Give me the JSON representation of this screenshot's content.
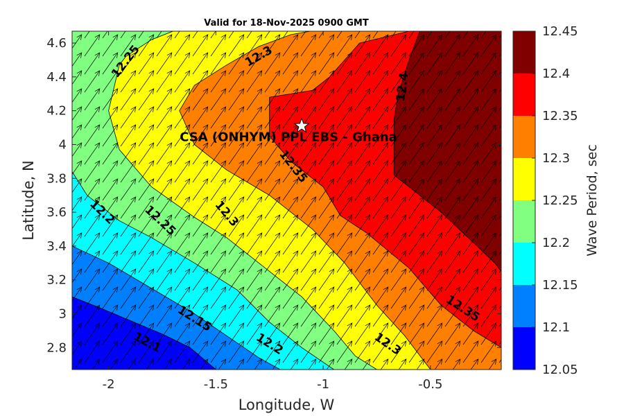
{
  "chart_data": {
    "type": "contour",
    "title": "Valid for 18-Nov-2025 0900 GMT",
    "xlabel": "Longitude, W",
    "ylabel": "Latitude, N",
    "xlim": [
      -2.17,
      -0.17
    ],
    "ylim": [
      2.67,
      4.67
    ],
    "xticks": [
      "-2",
      "-1.5",
      "-1",
      "-0.5"
    ],
    "yticks": [
      "4.6",
      "4.4",
      "4.2",
      "4",
      "3.8",
      "3.6",
      "3.4",
      "3.2",
      "3",
      "2.8"
    ],
    "site": {
      "label": "CSA (ONHYM) PPL EBS  - Ghana",
      "lon": -1.1,
      "lat": 4.11
    },
    "arrow_direction_deg_from_north": 35,
    "colorbar": {
      "label": "Wave Period, sec",
      "ticks": [
        "12.45",
        "12.4",
        "12.35",
        "12.3",
        "12.25",
        "12.2",
        "12.15",
        "12.1",
        "12.05"
      ],
      "levels": [
        12.05,
        12.1,
        12.15,
        12.2,
        12.25,
        12.3,
        12.35,
        12.4,
        12.45
      ],
      "colors": [
        "#0000ff",
        "#0080ff",
        "#00ffff",
        "#80ff80",
        "#ffff00",
        "#ff8000",
        "#ff0000",
        "#800000"
      ]
    },
    "contours": [
      {
        "level": 12.1,
        "path": [
          [
            -2.17,
            3.1
          ],
          [
            -2.05,
            3.04
          ],
          [
            -1.9,
            2.96
          ],
          [
            -1.75,
            2.88
          ],
          [
            -1.62,
            2.8
          ],
          [
            -1.5,
            2.67
          ]
        ]
      },
      {
        "level": 12.15,
        "path": [
          [
            -2.17,
            3.4
          ],
          [
            -2.0,
            3.3
          ],
          [
            -1.8,
            3.15
          ],
          [
            -1.6,
            3.0
          ],
          [
            -1.45,
            2.87
          ],
          [
            -1.3,
            2.74
          ],
          [
            -1.2,
            2.67
          ]
        ]
      },
      {
        "level": 12.2,
        "path": [
          [
            -2.17,
            3.84
          ],
          [
            -2.1,
            3.7
          ],
          [
            -1.95,
            3.55
          ],
          [
            -1.8,
            3.45
          ],
          [
            -1.6,
            3.3
          ],
          [
            -1.4,
            3.14
          ],
          [
            -1.25,
            2.95
          ],
          [
            -1.1,
            2.8
          ],
          [
            -0.95,
            2.67
          ]
        ]
      },
      {
        "level": 12.25,
        "path": [
          [
            -1.7,
            4.67
          ],
          [
            -1.8,
            4.62
          ],
          [
            -1.92,
            4.52
          ],
          [
            -1.95,
            4.47
          ],
          [
            -2.0,
            4.2
          ],
          [
            -1.95,
            3.97
          ],
          [
            -1.8,
            3.75
          ],
          [
            -1.6,
            3.57
          ],
          [
            -1.45,
            3.45
          ],
          [
            -1.3,
            3.3
          ],
          [
            -1.1,
            3.1
          ],
          [
            -0.95,
            2.9
          ],
          [
            -0.85,
            2.75
          ],
          [
            -0.75,
            2.67
          ]
        ]
      },
      {
        "level": 12.3,
        "path": [
          [
            -1.06,
            4.67
          ],
          [
            -1.15,
            4.65
          ],
          [
            -1.3,
            4.58
          ],
          [
            -1.45,
            4.47
          ],
          [
            -1.6,
            4.35
          ],
          [
            -1.67,
            4.2
          ],
          [
            -1.6,
            4.0
          ],
          [
            -1.45,
            3.85
          ],
          [
            -1.25,
            3.7
          ],
          [
            -1.05,
            3.5
          ],
          [
            -0.9,
            3.3
          ],
          [
            -0.75,
            3.05
          ],
          [
            -0.62,
            2.87
          ],
          [
            -0.5,
            2.67
          ]
        ]
      },
      {
        "level": 12.35,
        "path": [
          [
            -0.6,
            4.67
          ],
          [
            -0.83,
            4.6
          ],
          [
            -0.9,
            4.5
          ],
          [
            -0.97,
            4.4
          ],
          [
            -1.05,
            4.32
          ],
          [
            -1.25,
            4.28
          ],
          [
            -1.25,
            4.05
          ],
          [
            -1.15,
            3.9
          ],
          [
            -1.0,
            3.75
          ],
          [
            -0.92,
            3.58
          ],
          [
            -0.8,
            3.48
          ],
          [
            -0.6,
            3.27
          ],
          [
            -0.45,
            3.05
          ],
          [
            -0.3,
            2.9
          ],
          [
            -0.17,
            2.8
          ]
        ]
      },
      {
        "level": 12.4,
        "path": [
          [
            -0.55,
            4.67
          ],
          [
            -0.6,
            4.5
          ],
          [
            -0.65,
            4.3
          ],
          [
            -0.67,
            4.15
          ],
          [
            -0.67,
            3.82
          ],
          [
            -0.55,
            3.7
          ],
          [
            -0.45,
            3.6
          ],
          [
            -0.3,
            3.42
          ],
          [
            -0.2,
            3.3
          ],
          [
            -0.17,
            3.25
          ]
        ]
      }
    ],
    "contour_labels": [
      {
        "text": "12.25",
        "lon": -1.92,
        "lat": 4.49,
        "angle": -52
      },
      {
        "text": "12.3",
        "lon": -1.3,
        "lat": 4.52,
        "angle": -30
      },
      {
        "text": "12.4",
        "lon": -0.63,
        "lat": 4.34,
        "angle": -82
      },
      {
        "text": "12.35",
        "lon": -1.14,
        "lat": 3.87,
        "angle": 52
      },
      {
        "text": "12.2",
        "lon": -2.03,
        "lat": 3.6,
        "angle": 44
      },
      {
        "text": "12.25",
        "lon": -1.76,
        "lat": 3.55,
        "angle": 43
      },
      {
        "text": "12.3",
        "lon": -1.45,
        "lat": 3.59,
        "angle": 50
      },
      {
        "text": "12.15",
        "lon": -1.6,
        "lat": 2.97,
        "angle": 32
      },
      {
        "text": "12.1",
        "lon": -1.82,
        "lat": 2.83,
        "angle": 28
      },
      {
        "text": "12.2",
        "lon": -1.25,
        "lat": 2.82,
        "angle": 32
      },
      {
        "text": "12.3",
        "lon": -0.7,
        "lat": 2.82,
        "angle": 35
      },
      {
        "text": "12.35",
        "lon": -0.35,
        "lat": 3.03,
        "angle": 33
      }
    ]
  }
}
